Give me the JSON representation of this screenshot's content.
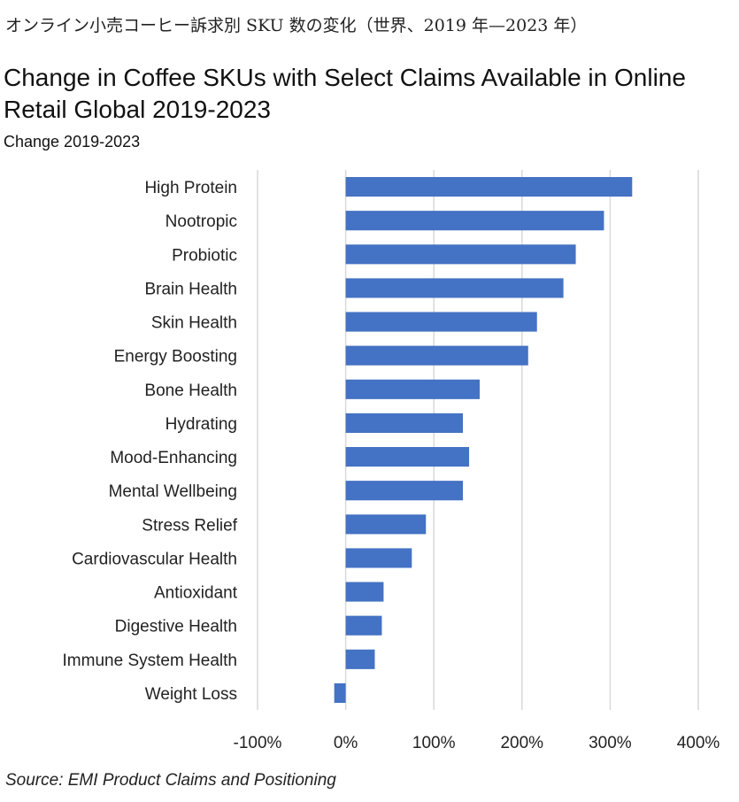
{
  "header": {
    "jp_title": "オンライン小売コーヒー訴求別 SKU 数の変化（世界、2019 年—2023 年）"
  },
  "chart_data": {
    "type": "bar",
    "orientation": "horizontal",
    "title": "Change in Coffee SKUs with Select Claims Available in Online Retail Global 2019-2023",
    "subtitle": "Change 2019-2023",
    "categories": [
      "High Protein",
      "Nootropic",
      "Probiotic",
      "Brain Health",
      "Skin Health",
      "Energy Boosting",
      "Bone Health",
      "Hydrating",
      "Mood-Enhancing",
      "Mental Wellbeing",
      "Stress Relief",
      "Cardiovascular Health",
      "Antioxidant",
      "Digestive Health",
      "Immune System Health",
      "Weight Loss"
    ],
    "values": [
      325,
      293,
      261,
      247,
      217,
      207,
      152,
      133,
      140,
      133,
      91,
      75,
      43,
      41,
      33,
      -13
    ],
    "unit": "%",
    "xlim": [
      -100,
      400
    ],
    "xticks": [
      "-100%",
      "0%",
      "100%",
      "200%",
      "300%",
      "400%"
    ],
    "grid": true,
    "bar_color": "#4472C4",
    "legend": "none"
  },
  "footer": {
    "source": "Source: EMI Product Claims and Positioning"
  }
}
